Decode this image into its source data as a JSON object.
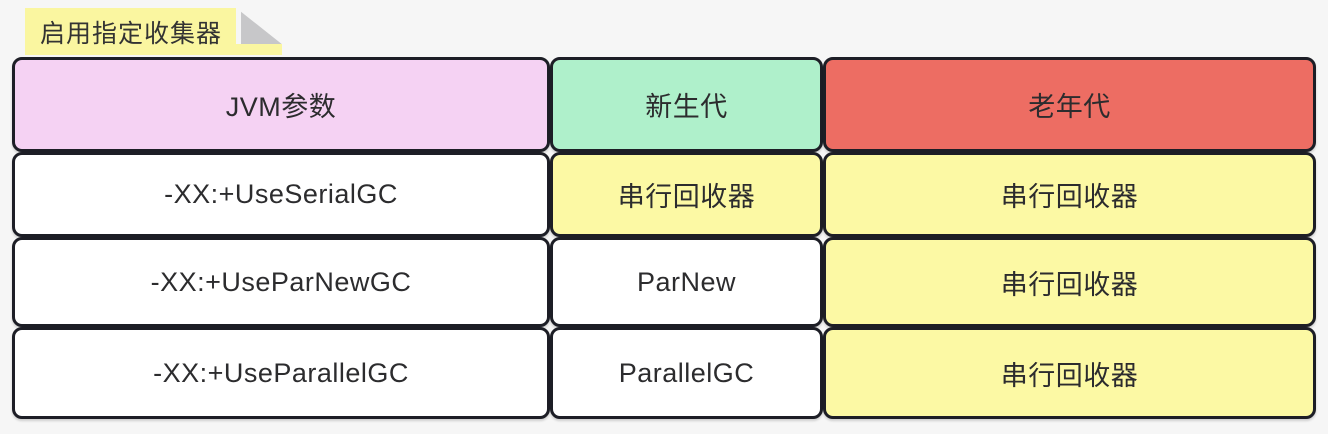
{
  "note": {
    "label": "启用指定收集器"
  },
  "table": {
    "headers": [
      {
        "label": "JVM参数",
        "bg": "#f5d2f3"
      },
      {
        "label": "新生代",
        "bg": "#aff0cb"
      },
      {
        "label": "老年代",
        "bg": "#ed6d63"
      }
    ],
    "rows": [
      {
        "cells": [
          {
            "text": "-XX:+UseSerialGC",
            "bg": "#ffffff"
          },
          {
            "text": "串行回收器",
            "bg": "#fcf9a4"
          },
          {
            "text": "串行回收器",
            "bg": "#fcf9a4"
          }
        ]
      },
      {
        "cells": [
          {
            "text": "-XX:+UseParNewGC",
            "bg": "#ffffff"
          },
          {
            "text": "ParNew",
            "bg": "#ffffff"
          },
          {
            "text": "串行回收器",
            "bg": "#fcf9a4"
          }
        ]
      },
      {
        "cells": [
          {
            "text": "-XX:+UseParallelGC",
            "bg": "#ffffff"
          },
          {
            "text": "ParallelGC",
            "bg": "#ffffff"
          },
          {
            "text": "串行回收器",
            "bg": "#fcf9a4"
          }
        ]
      }
    ]
  },
  "colors": {
    "page_bg": "#f6f6f6",
    "cell_border": "#1d1e26",
    "text": "#2c2c2e",
    "note_bg": "#faf6a0",
    "note_fold": "#c7c7c9",
    "header_pink": "#f5d2f3",
    "header_green": "#aff0cb",
    "header_red": "#ed6d63",
    "cell_yellow": "#fcf9a4",
    "cell_white": "#ffffff"
  }
}
